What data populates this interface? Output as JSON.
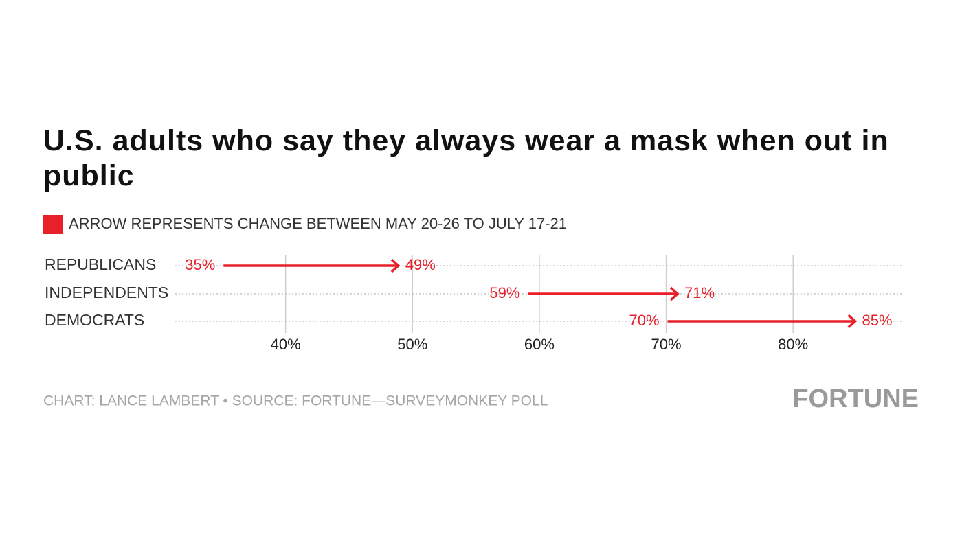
{
  "chart_data": {
    "type": "arrow",
    "title": "U.S. adults who say they always wear a mask when out in public",
    "legend": "ARROW REPRESENTS CHANGE BETWEEN MAY 20-26 TO JULY 17-21",
    "categories": [
      "REPUBLICANS",
      "INDEPENDENTS",
      "DEMOCRATS"
    ],
    "series": [
      {
        "values": [
          35,
          59,
          70
        ],
        "value_labels": [
          "35%",
          "59%",
          "70%"
        ]
      },
      {
        "values": [
          49,
          71,
          85
        ],
        "value_labels": [
          "49%",
          "71%",
          "85%"
        ]
      }
    ],
    "color": "#e8202a",
    "xlim": [
      31.3,
      88.6
    ],
    "xticks": [
      {
        "value": 40,
        "label": "40%"
      },
      {
        "value": 50,
        "label": "50%"
      },
      {
        "value": 60,
        "label": "60%"
      },
      {
        "value": 70,
        "label": "70%"
      },
      {
        "value": 80,
        "label": "80%"
      }
    ],
    "grid": true,
    "source": "CHART: LANCE LAMBERT • SOURCE: FORTUNE—SURVEYMONKEY POLL",
    "brand": "FORTUNE"
  }
}
